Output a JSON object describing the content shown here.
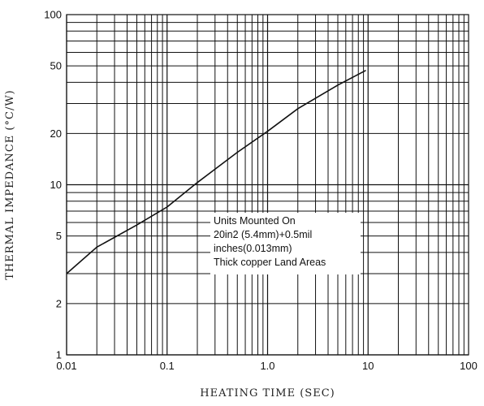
{
  "chart_data": {
    "type": "line",
    "xlabel": "HEATING TIME (SEC)",
    "ylabel": "THERMAL IMPEDANCE (°C/W)",
    "xscale": "log",
    "yscale": "log",
    "xlim": [
      0.01,
      100
    ],
    "ylim": [
      1,
      100
    ],
    "grid": true,
    "x_ticks": [
      "0.01",
      "0.1",
      "1.0",
      "10",
      "100"
    ],
    "y_ticks": [
      "1",
      "2",
      "5",
      "10",
      "20",
      "50",
      "100"
    ],
    "series": [
      {
        "x": [
          0.01,
          0.02,
          0.05,
          0.1,
          0.2,
          0.5,
          1,
          2,
          5,
          9.5
        ],
        "y": [
          3.0,
          4.3,
          5.8,
          7.4,
          10.3,
          15.5,
          20.6,
          28,
          38.5,
          47
        ]
      }
    ],
    "annotation": [
      "Units Mounted On",
      "20in2 (5.4mm)+0.5mil",
      "inches(0.013mm)",
      "Thick copper Land Areas"
    ]
  }
}
